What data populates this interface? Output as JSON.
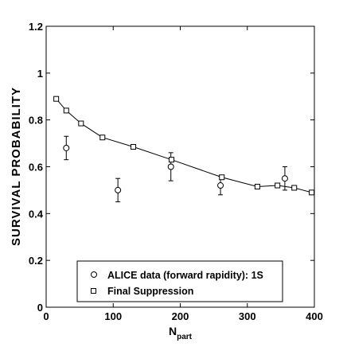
{
  "chart_data": {
    "type": "scatter",
    "xlabel_main": "N",
    "xlabel_sub": "part",
    "ylabel": "SURVIVAL PROBABILITY",
    "xlim": [
      0,
      400
    ],
    "ylim": [
      0,
      1.2
    ],
    "x_ticks": [
      "0",
      "100",
      "200",
      "300",
      "400"
    ],
    "y_ticks": [
      "0",
      "0.2",
      "0.4",
      "0.6",
      "0.8",
      "1",
      "1.2"
    ],
    "grid": false,
    "legend_position": "bottom-center",
    "series": [
      {
        "name": "ALICE data (forward rapidity): 1S",
        "marker": "circle",
        "points": [
          {
            "x": 30,
            "y": 0.68,
            "err": 0.05
          },
          {
            "x": 107,
            "y": 0.5,
            "err": 0.05
          },
          {
            "x": 186,
            "y": 0.6,
            "err": 0.06
          },
          {
            "x": 260,
            "y": 0.52,
            "err": 0.04
          },
          {
            "x": 356,
            "y": 0.55,
            "err": 0.05
          }
        ]
      },
      {
        "name": "Final Suppression",
        "marker": "square",
        "line": true,
        "points": [
          {
            "x": 15,
            "y": 0.89
          },
          {
            "x": 30,
            "y": 0.84
          },
          {
            "x": 52,
            "y": 0.785
          },
          {
            "x": 84,
            "y": 0.725
          },
          {
            "x": 130,
            "y": 0.685
          },
          {
            "x": 187,
            "y": 0.63
          },
          {
            "x": 262,
            "y": 0.555
          },
          {
            "x": 315,
            "y": 0.515
          },
          {
            "x": 345,
            "y": 0.52
          },
          {
            "x": 370,
            "y": 0.51
          },
          {
            "x": 396,
            "y": 0.49
          }
        ]
      }
    ]
  }
}
